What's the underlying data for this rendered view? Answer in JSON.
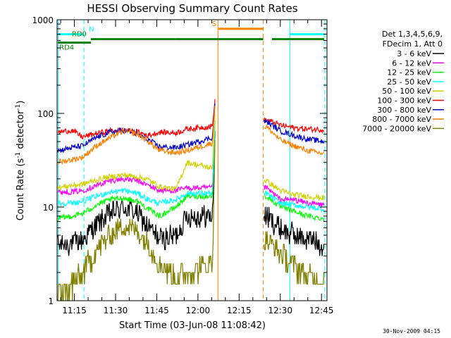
{
  "chart_data": {
    "type": "line",
    "title": "HESSI Observing Summary Count Rates",
    "xlabel": "Start Time (03-Jun-08 11:08:42)",
    "ylabel_parts": [
      "Count Rate (s",
      "-1",
      " detector",
      "-1",
      ")"
    ],
    "ylabel": "Count Rate (s^-1 detector^-1)",
    "footer": "30-Nov-2009 04:15",
    "y_scale": "log",
    "ylim": [
      1,
      1000
    ],
    "y_ticks": [
      1,
      10,
      100,
      1000
    ],
    "y_tick_labels": [
      "1",
      "10",
      "100",
      "1000"
    ],
    "xlim_min": [
      668.7,
      767.0
    ],
    "x_ticks_min": [
      675,
      690,
      705,
      720,
      735,
      750,
      765
    ],
    "x_tick_labels": [
      "11:15",
      "11:30",
      "11:45",
      "12:00",
      "12:15",
      "12:30",
      "12:45"
    ],
    "legend": {
      "placement": "right",
      "header": [
        "Det 1,3,4,5,6,9,",
        "FDecim 1, Att 0"
      ]
    },
    "gap": [
      727.3,
      743.8
    ],
    "series": [
      {
        "name": "3 - 6 keV",
        "color": "#000000",
        "points": [
          [
            669,
            4
          ],
          [
            674,
            4
          ],
          [
            678,
            4.5
          ],
          [
            683,
            6.5
          ],
          [
            688,
            8.5
          ],
          [
            693,
            10
          ],
          [
            698,
            8.5
          ],
          [
            702,
            6
          ],
          [
            706,
            4.5
          ],
          [
            712,
            5
          ],
          [
            716,
            8
          ],
          [
            745,
            8
          ],
          [
            750,
            6
          ],
          [
            755,
            5
          ],
          [
            760,
            4.5
          ],
          [
            766,
            4
          ]
        ]
      },
      {
        "name": "6 - 12 keV",
        "color": "#ff00ff",
        "points": [
          [
            669,
            14.5
          ],
          [
            674,
            14.5
          ],
          [
            678,
            15
          ],
          [
            683,
            17
          ],
          [
            688,
            19
          ],
          [
            693,
            20
          ],
          [
            698,
            19
          ],
          [
            702,
            17
          ],
          [
            706,
            15
          ],
          [
            712,
            15
          ],
          [
            716,
            16
          ],
          [
            745,
            16
          ],
          [
            750,
            12
          ],
          [
            755,
            12
          ],
          [
            760,
            11
          ],
          [
            766,
            10.5
          ]
        ]
      },
      {
        "name": "12 - 25 keV",
        "color": "#00ff00",
        "points": [
          [
            669,
            7.5
          ],
          [
            674,
            8
          ],
          [
            678,
            8.5
          ],
          [
            683,
            10.5
          ],
          [
            688,
            12
          ],
          [
            693,
            12.5
          ],
          [
            698,
            11.5
          ],
          [
            702,
            9.5
          ],
          [
            706,
            8
          ],
          [
            712,
            10
          ],
          [
            716,
            13
          ],
          [
            745,
            13
          ],
          [
            750,
            10
          ],
          [
            755,
            9
          ],
          [
            760,
            8
          ],
          [
            766,
            7.5
          ]
        ]
      },
      {
        "name": "25 - 50 keV",
        "color": "#00ffff",
        "points": [
          [
            669,
            11
          ],
          [
            674,
            11
          ],
          [
            678,
            11.5
          ],
          [
            683,
            13
          ],
          [
            688,
            14.5
          ],
          [
            693,
            15
          ],
          [
            698,
            14
          ],
          [
            702,
            12
          ],
          [
            706,
            11
          ],
          [
            712,
            12
          ],
          [
            716,
            14
          ],
          [
            745,
            14
          ],
          [
            750,
            11
          ],
          [
            755,
            10.5
          ],
          [
            760,
            10
          ],
          [
            766,
            9.5
          ]
        ]
      },
      {
        "name": "50 - 100 keV",
        "color": "#d2d200",
        "points": [
          [
            669,
            16
          ],
          [
            674,
            17
          ],
          [
            678,
            17.5
          ],
          [
            683,
            19.5
          ],
          [
            688,
            21
          ],
          [
            693,
            22
          ],
          [
            698,
            21
          ],
          [
            702,
            19.5
          ],
          [
            706,
            16.5
          ],
          [
            712,
            15.5
          ],
          [
            716,
            30
          ],
          [
            745,
            19
          ],
          [
            750,
            15
          ],
          [
            755,
            13.5
          ],
          [
            760,
            13
          ],
          [
            766,
            12.5
          ]
        ]
      },
      {
        "name": "100 - 300 keV",
        "color": "#ff0000",
        "points": [
          [
            669,
            63
          ],
          [
            674,
            66
          ],
          [
            678,
            56
          ],
          [
            683,
            61
          ],
          [
            688,
            65
          ],
          [
            693,
            66
          ],
          [
            698,
            63
          ],
          [
            702,
            58
          ],
          [
            706,
            63
          ],
          [
            712,
            62
          ],
          [
            716,
            68
          ],
          [
            745,
            85
          ],
          [
            750,
            75
          ],
          [
            755,
            70
          ],
          [
            760,
            68
          ],
          [
            766,
            67
          ]
        ]
      },
      {
        "name": "300 - 800 keV",
        "color": "#0000cc",
        "points": [
          [
            669,
            40
          ],
          [
            674,
            43
          ],
          [
            678,
            45
          ],
          [
            683,
            55
          ],
          [
            688,
            63
          ],
          [
            693,
            66
          ],
          [
            698,
            60
          ],
          [
            702,
            52
          ],
          [
            706,
            44
          ],
          [
            712,
            43
          ],
          [
            716,
            46
          ],
          [
            745,
            82
          ],
          [
            750,
            65
          ],
          [
            755,
            58
          ],
          [
            760,
            53
          ],
          [
            766,
            50
          ]
        ]
      },
      {
        "name": "800 - 7000 keV",
        "color": "#ff8000",
        "points": [
          [
            669,
            30
          ],
          [
            674,
            32
          ],
          [
            678,
            34
          ],
          [
            683,
            45
          ],
          [
            688,
            55
          ],
          [
            693,
            65
          ],
          [
            698,
            60
          ],
          [
            702,
            50
          ],
          [
            706,
            40
          ],
          [
            712,
            38
          ],
          [
            716,
            40
          ],
          [
            745,
            72
          ],
          [
            750,
            52
          ],
          [
            755,
            45
          ],
          [
            760,
            40
          ],
          [
            766,
            37
          ]
        ]
      },
      {
        "name": "7000 - 20000 keV",
        "color": "#808000",
        "points": [
          [
            669,
            1.2
          ],
          [
            674,
            1.5
          ],
          [
            678,
            2
          ],
          [
            683,
            3.5
          ],
          [
            688,
            5
          ],
          [
            693,
            6.5
          ],
          [
            698,
            5.5
          ],
          [
            702,
            4
          ],
          [
            706,
            2.5
          ],
          [
            712,
            1.8
          ],
          [
            716,
            2
          ],
          [
            745,
            4.5
          ],
          [
            750,
            3.2
          ],
          [
            755,
            2.3
          ],
          [
            760,
            1.8
          ],
          [
            766,
            1.6
          ]
        ]
      }
    ],
    "vertical_lines": [
      {
        "x": 669.1,
        "style": "solid",
        "color": "#00ffff"
      },
      {
        "x": 678.5,
        "style": "dashed",
        "color": "#00ffff"
      },
      {
        "x": 753.5,
        "style": "solid",
        "color": "#00ffff"
      },
      {
        "x": 766.2,
        "style": "dashed",
        "color": "#00ffff"
      },
      {
        "x": 727.3,
        "style": "solid",
        "color": "#ff8000"
      },
      {
        "x": 743.8,
        "style": "dashed",
        "color": "#ff8000"
      }
    ],
    "flag_bars": [
      {
        "label": "N",
        "color": "#00ffff",
        "level": 700,
        "segments": [
          [
            669,
            678.5
          ],
          [
            753.5,
            766
          ]
        ]
      },
      {
        "label": "S",
        "color": "#ff8000",
        "level": 800,
        "segments": [
          [
            727.5,
            743.8
          ]
        ]
      },
      {
        "label": "RD0",
        "color": "#008000",
        "level": 620,
        "segments": [
          [
            681,
            712
          ],
          [
            712,
            743.8
          ],
          [
            747,
            766
          ]
        ]
      },
      {
        "label": "RD4",
        "color": "#008000",
        "level": 570,
        "segments": [
          [
            669,
            681
          ]
        ]
      }
    ],
    "flare_spike": {
      "x": 726.5,
      "peak": 190
    }
  }
}
